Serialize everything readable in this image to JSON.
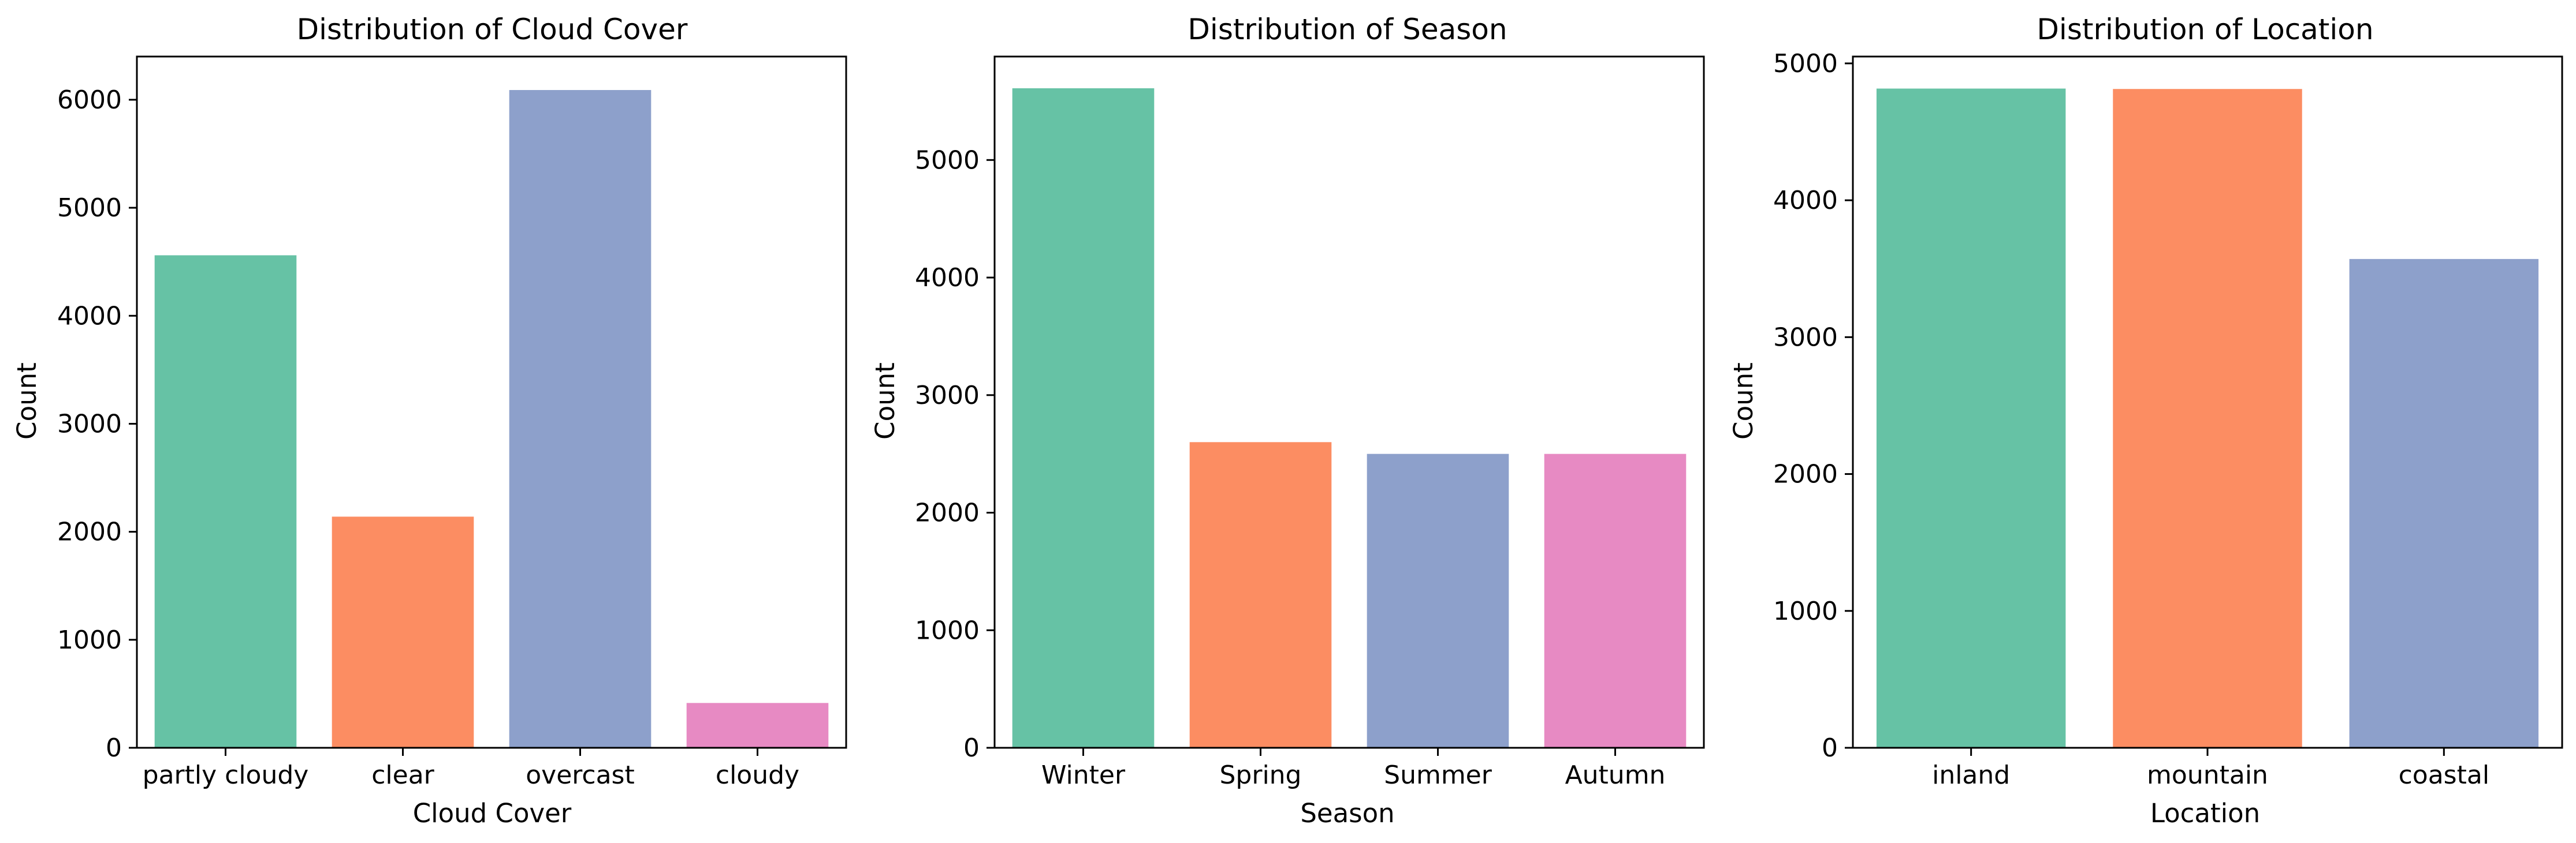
{
  "figure": {
    "background": "#ffffff",
    "palette": [
      "#66c2a5",
      "#fc8d62",
      "#8da0cb",
      "#e78ac3"
    ]
  },
  "chart_data": [
    {
      "type": "bar",
      "title": "Distribution of Cloud Cover",
      "xlabel": "Cloud Cover",
      "ylabel": "Count",
      "categories": [
        "partly cloudy",
        "clear",
        "overcast",
        "cloudy"
      ],
      "values": [
        4560,
        2140,
        6090,
        415
      ],
      "ylim": [
        0,
        6400
      ],
      "yticks": [
        0,
        1000,
        2000,
        3000,
        4000,
        5000,
        6000
      ],
      "grid": false,
      "legend": "none"
    },
    {
      "type": "bar",
      "title": "Distribution of Season",
      "xlabel": "Season",
      "ylabel": "Count",
      "categories": [
        "Winter",
        "Spring",
        "Summer",
        "Autumn"
      ],
      "values": [
        5610,
        2600,
        2500,
        2500
      ],
      "ylim": [
        0,
        5880
      ],
      "yticks": [
        0,
        1000,
        2000,
        3000,
        4000,
        5000
      ],
      "grid": false,
      "legend": "none"
    },
    {
      "type": "bar",
      "title": "Distribution of Location",
      "xlabel": "Location",
      "ylabel": "Count",
      "categories": [
        "inland",
        "mountain",
        "coastal"
      ],
      "values": [
        4816,
        4813,
        3571
      ],
      "ylim": [
        0,
        5050
      ],
      "yticks": [
        0,
        1000,
        2000,
        3000,
        4000,
        5000
      ],
      "grid": false,
      "legend": "none"
    }
  ]
}
